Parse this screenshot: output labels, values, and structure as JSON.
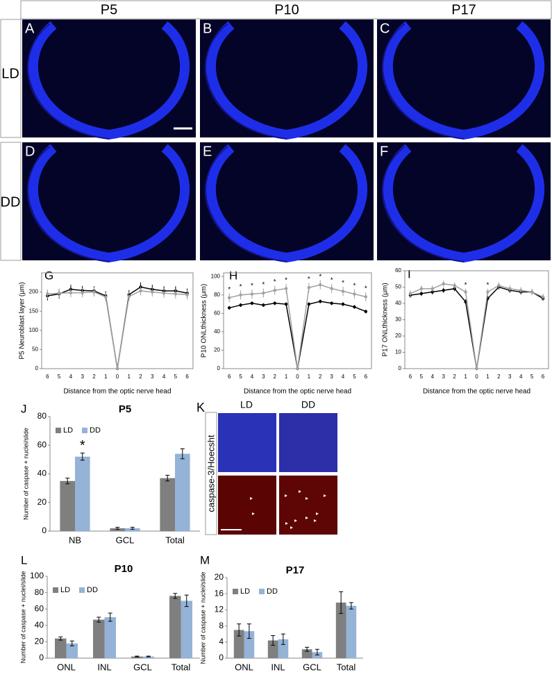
{
  "figure": {
    "column_headers": [
      "P5",
      "P10",
      "P17"
    ],
    "row_labels": [
      "LD",
      "DD"
    ],
    "image_panels": [
      "A",
      "B",
      "C",
      "D",
      "E",
      "F"
    ],
    "k_panel": {
      "label": "K",
      "columns": [
        "LD",
        "DD"
      ],
      "row_label": "caspase-3/Hoecsht"
    }
  },
  "chart_data": [
    {
      "type": "line",
      "label": "G",
      "ylabel": "P5 Neuroblast layer (μm)",
      "xlabel": "Distance from the optic nerve head",
      "categories": [
        "6",
        "5",
        "4",
        "3",
        "2",
        "1",
        "0",
        "1",
        "2",
        "3",
        "4",
        "5",
        "6"
      ],
      "ylim": [
        0,
        250
      ],
      "yticks": [
        0,
        50,
        100,
        150,
        200
      ],
      "series": [
        {
          "color": "#000000",
          "values": [
            190,
            195,
            207,
            204,
            203,
            190,
            0,
            193,
            213,
            207,
            203,
            203,
            197
          ],
          "errors": [
            12,
            12,
            12,
            12,
            12,
            12,
            0,
            12,
            12,
            12,
            12,
            12,
            12
          ]
        },
        {
          "color": "#a0a0a0",
          "values": [
            195,
            197,
            198,
            198,
            200,
            187,
            0,
            188,
            203,
            200,
            197,
            195,
            193
          ],
          "errors": [
            12,
            12,
            12,
            12,
            12,
            12,
            0,
            12,
            12,
            12,
            12,
            12,
            12
          ]
        }
      ]
    },
    {
      "type": "line",
      "label": "H",
      "ylabel": "P10 ONLthickness (μm)",
      "xlabel": "Distance from the optic nerve head",
      "categories": [
        "6",
        "5",
        "4",
        "3",
        "2",
        "1",
        "0",
        "1",
        "2",
        "3",
        "4",
        "5",
        "6"
      ],
      "ylim": [
        0,
        104
      ],
      "yticks": [
        0,
        20,
        40,
        60,
        80,
        100
      ],
      "series": [
        {
          "color": "#000000",
          "values": [
            66,
            69,
            71,
            69,
            71,
            70,
            0,
            70,
            73,
            71,
            70,
            67,
            62
          ],
          "errors": [
            2,
            2,
            2,
            2,
            2,
            2,
            0,
            2,
            2,
            2,
            2,
            2,
            2
          ]
        },
        {
          "color": "#a0a0a0",
          "values": [
            77,
            80,
            81,
            82,
            85,
            87,
            0,
            88,
            91,
            87,
            84,
            81,
            78
          ],
          "errors": [
            5,
            5,
            5,
            5,
            5,
            5,
            0,
            5,
            5,
            5,
            5,
            5,
            5
          ],
          "marks": [
            "*",
            "*",
            "*",
            "*",
            "*",
            "*",
            null,
            "*",
            "*",
            "*",
            "*",
            "*",
            "*"
          ]
        }
      ]
    },
    {
      "type": "line",
      "label": "I",
      "ylabel": "P17 ONLthickness (μm)",
      "xlabel": "Distance from the optic nerve head",
      "categories": [
        "6",
        "5",
        "4",
        "3",
        "2",
        "1",
        "0",
        "1",
        "2",
        "3",
        "4",
        "5",
        "6"
      ],
      "ylim": [
        0,
        60
      ],
      "yticks": [
        0,
        10,
        20,
        30,
        40,
        50,
        60
      ],
      "series": [
        {
          "color": "#000000",
          "values": [
            45,
            46,
            47,
            48,
            49,
            41,
            0,
            43,
            50,
            48,
            47,
            47,
            43
          ],
          "errors": [
            1.5,
            1.5,
            1.5,
            1.5,
            1.5,
            1.5,
            0,
            1.5,
            1.5,
            1.5,
            1.5,
            1.5,
            1.5
          ]
        },
        {
          "color": "#a0a0a0",
          "values": [
            46,
            49,
            49,
            52,
            51,
            47,
            0,
            47,
            51,
            49,
            48,
            47,
            44
          ],
          "errors": [
            2,
            2,
            2,
            2,
            2,
            2,
            0,
            2,
            2,
            2,
            2,
            2,
            2
          ],
          "marks": [
            null,
            null,
            null,
            null,
            null,
            "*",
            null,
            "*",
            null,
            null,
            null,
            null,
            null
          ]
        }
      ]
    },
    {
      "type": "bar",
      "label": "J",
      "title": "P5",
      "ylabel": "Number of caspase + nuclei/slide",
      "categories": [
        "NB",
        "GCL",
        "Total"
      ],
      "ylim": [
        0,
        80
      ],
      "yticks": [
        0,
        20,
        40,
        60,
        80
      ],
      "series": [
        {
          "name": "LD",
          "color": "#7f7f7f",
          "values": [
            35,
            2,
            37
          ],
          "errors": [
            2,
            0.7,
            2
          ]
        },
        {
          "name": "DD",
          "color": "#95b3d7",
          "values": [
            52,
            2,
            54
          ],
          "errors": [
            2.5,
            0.7,
            3.5
          ],
          "marks": [
            "*",
            null,
            null
          ]
        }
      ]
    },
    {
      "type": "bar",
      "label": "L",
      "title": "P10",
      "ylabel": "Number of caspase + nuclei/slide",
      "categories": [
        "ONL",
        "INL",
        "GCL",
        "Total"
      ],
      "ylim": [
        0,
        100
      ],
      "yticks": [
        0,
        20,
        40,
        60,
        80,
        100
      ],
      "series": [
        {
          "name": "LD",
          "color": "#7f7f7f",
          "values": [
            24,
            47,
            2,
            76
          ],
          "errors": [
            2,
            3,
            0.5,
            3
          ]
        },
        {
          "name": "DD",
          "color": "#95b3d7",
          "values": [
            18,
            50,
            2,
            70
          ],
          "errors": [
            3,
            5,
            0.5,
            7
          ]
        }
      ]
    },
    {
      "type": "bar",
      "label": "M",
      "title": "P17",
      "ylabel": "Number of caspase + nuclei/slide",
      "categories": [
        "ONL",
        "INL",
        "GCL",
        "Total"
      ],
      "ylim": [
        0,
        20
      ],
      "yticks": [
        0,
        4,
        8,
        12,
        16,
        20
      ],
      "series": [
        {
          "name": "LD",
          "color": "#7f7f7f",
          "values": [
            7,
            4.4,
            2.2,
            13.8
          ],
          "errors": [
            1.5,
            1.2,
            0.5,
            2.7
          ]
        },
        {
          "name": "DD",
          "color": "#95b3d7",
          "values": [
            6.7,
            4.7,
            1.5,
            13
          ],
          "errors": [
            1.8,
            1.3,
            0.7,
            0.8
          ]
        }
      ]
    }
  ]
}
